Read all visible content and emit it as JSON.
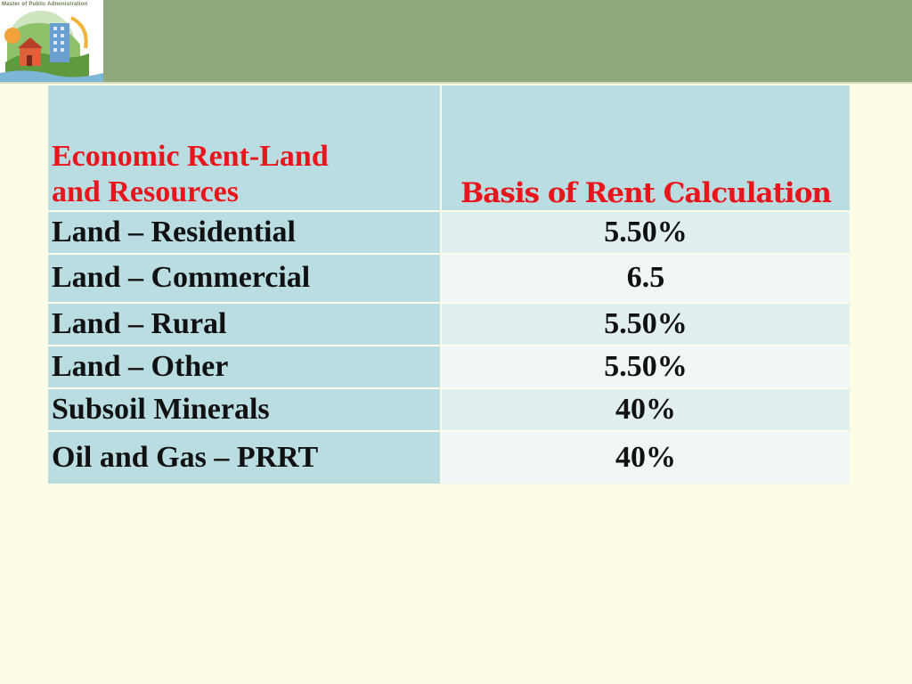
{
  "header": {
    "logo_caption": "Master of Public Administration"
  },
  "table": {
    "header_col1_line1": "Economic Rent-Land",
    "header_col1_line2": "and Resources",
    "header_col2": "Basis of Rent Calculation",
    "rows": [
      {
        "name": "Land – Residential",
        "value": "5.50%"
      },
      {
        "name": "Land – Commercial",
        "value": "6.5"
      },
      {
        "name": "Land – Rural",
        "value": "5.50%"
      },
      {
        "name": "Land – Other",
        "value": "5.50%"
      },
      {
        "name": "Subsoil Minerals",
        "value": "40%"
      },
      {
        "name": "Oil and Gas – PRRT",
        "value": "40%"
      }
    ]
  },
  "colors": {
    "background": "#fdfce6",
    "header_band": "#8fa97c",
    "table_label_cell": "#b9dde0",
    "heading_text": "#e8161c"
  },
  "icons": {
    "logo": "city-landscape-logo"
  }
}
